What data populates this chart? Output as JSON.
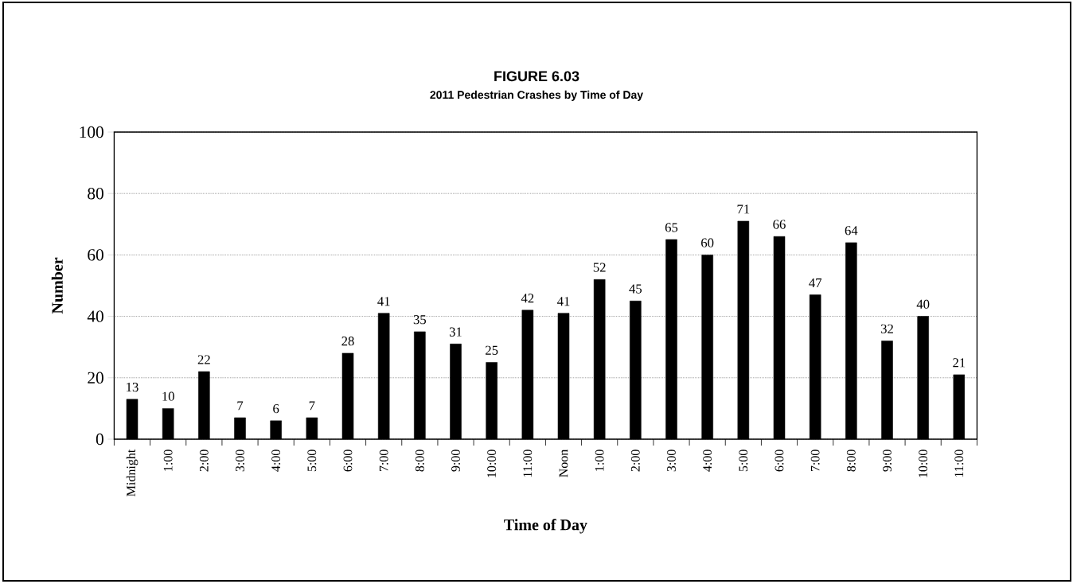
{
  "chart_data": {
    "type": "bar",
    "title": "FIGURE 6.03",
    "subtitle": "2011 Pedestrian Crashes by Time of Day",
    "xlabel": "Time of Day",
    "ylabel": "Number",
    "categories": [
      "Midnight",
      "1:00",
      "2:00",
      "3:00",
      "4:00",
      "5:00",
      "6:00",
      "7:00",
      "8:00",
      "9:00",
      "10:00",
      "11:00",
      "Noon",
      "1:00",
      "2:00",
      "3:00",
      "4:00",
      "5:00",
      "6:00",
      "7:00",
      "8:00",
      "9:00",
      "10:00",
      "11:00"
    ],
    "values": [
      13,
      10,
      22,
      7,
      6,
      7,
      28,
      41,
      35,
      31,
      25,
      42,
      41,
      52,
      45,
      65,
      60,
      71,
      66,
      47,
      64,
      32,
      40,
      21
    ],
    "color": "#000000",
    "ylim": [
      0,
      100
    ],
    "yticks": [
      0,
      20,
      40,
      60,
      80,
      100
    ],
    "grid": "y",
    "data_labels": true
  }
}
